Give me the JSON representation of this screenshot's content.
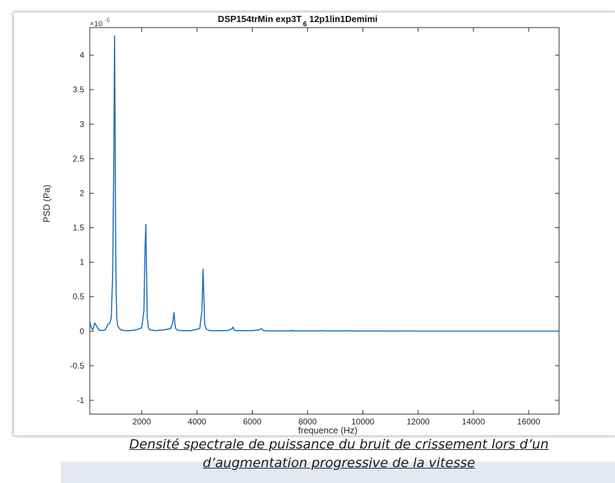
{
  "chart_data": {
    "type": "line",
    "title_main": "DSP154trMin exp3T",
    "title_sub": "6",
    "title_tail": "12p1lin1Demimi",
    "xlabel": "frequence (Hz)",
    "ylabel": "PSD (Pa)",
    "y_multiplier_base": "×10",
    "y_multiplier_exp": "-5",
    "xlim": [
      120,
      17100
    ],
    "ylim": [
      -1.2,
      4.4
    ],
    "xticks": [
      2000,
      4000,
      6000,
      8000,
      10000,
      12000,
      14000,
      16000
    ],
    "yticks": [
      -1,
      -0.5,
      0,
      0.5,
      1,
      1.5,
      2,
      2.5,
      3,
      3.5,
      4
    ],
    "grid": false,
    "line_color": "#1f6fb4",
    "series": [
      {
        "x": [
          120,
          170,
          230,
          300,
          360,
          450,
          560,
          680,
          780,
          850,
          900,
          950,
          990,
          1020,
          1040,
          1060,
          1080,
          1100,
          1130,
          1180,
          1250,
          1400,
          1600,
          1800,
          2000,
          2080,
          2120,
          2150,
          2175,
          2200,
          2240,
          2300,
          2500,
          2800,
          3050,
          3120,
          3170,
          3200,
          3230,
          3280,
          3400,
          3800,
          4100,
          4180,
          4220,
          4250,
          4280,
          4340,
          4450,
          4800,
          5100,
          5250,
          5300,
          5340,
          5400,
          5600,
          6000,
          6250,
          6330,
          6400,
          6600,
          7000,
          7400,
          7420,
          7450,
          8000,
          8420,
          8450,
          8500,
          9000,
          9450,
          9480,
          9520,
          10000,
          12000,
          14000,
          16000,
          17100
        ],
        "y": [
          0.14,
          0.06,
          0.02,
          0.12,
          0.08,
          0.02,
          0.01,
          0.02,
          0.1,
          0.12,
          0.2,
          0.8,
          2.4,
          4.28,
          3.0,
          1.2,
          0.5,
          0.2,
          0.08,
          0.05,
          0.02,
          0.01,
          0.01,
          0.02,
          0.05,
          0.3,
          1.2,
          1.55,
          0.9,
          0.2,
          0.05,
          0.02,
          0.01,
          0.02,
          0.04,
          0.12,
          0.27,
          0.12,
          0.04,
          0.02,
          0.01,
          0.01,
          0.04,
          0.3,
          0.9,
          0.5,
          0.1,
          0.03,
          0.01,
          0.01,
          0.01,
          0.03,
          0.06,
          0.02,
          0.01,
          0.01,
          0.01,
          0.02,
          0.04,
          0.01,
          0.005,
          0.005,
          0.005,
          0.015,
          0.005,
          0.005,
          0.005,
          0.012,
          0.005,
          0.005,
          0.005,
          0.01,
          0.005,
          0.004,
          0.003,
          0.003,
          0.003,
          0.003
        ]
      }
    ]
  },
  "caption": {
    "line1": "Densité spectrale de puissance du bruit de crissement lors d’un",
    "line2": "d’augmentation progressive de la vitesse"
  }
}
